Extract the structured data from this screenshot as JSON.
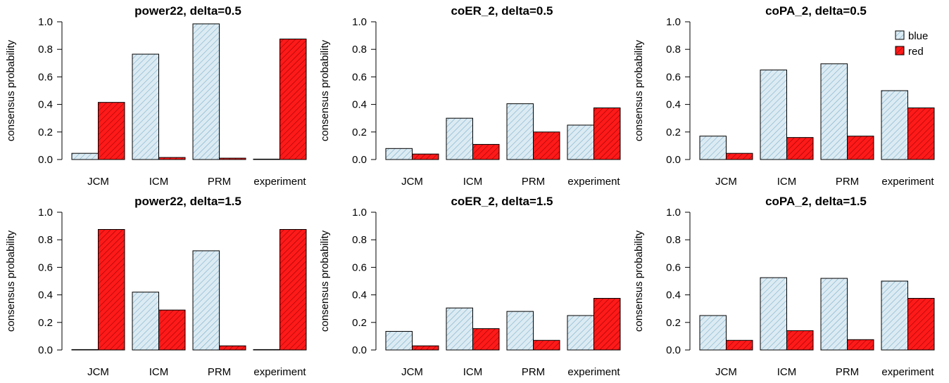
{
  "colors": {
    "blue_fill": "#dcebf3",
    "blue_hatch": "#7aaec9",
    "red_fill": "#ff1a1a",
    "red_hatch": "#9a0000",
    "axis": "#000000"
  },
  "legend": {
    "placement": "top-right of third panel",
    "entries": [
      "blue",
      "red"
    ]
  },
  "chart_data": [
    {
      "type": "bar",
      "title": "power22, delta=0.5",
      "ylabel": "consensus probability",
      "xlabel": "",
      "categories": [
        "JCM",
        "ICM",
        "PRM",
        "experiment"
      ],
      "ylim": [
        0,
        1
      ],
      "yticks": [
        "0.0",
        "0.2",
        "0.4",
        "0.6",
        "0.8",
        "1.0"
      ],
      "series": [
        {
          "name": "blue",
          "values": [
            0.045,
            0.765,
            0.985,
            0.0
          ]
        },
        {
          "name": "red",
          "values": [
            0.415,
            0.015,
            0.01,
            0.875
          ]
        }
      ]
    },
    {
      "type": "bar",
      "title": "coER_2, delta=0.5",
      "ylabel": "consensus probability",
      "xlabel": "",
      "categories": [
        "JCM",
        "ICM",
        "PRM",
        "experiment"
      ],
      "ylim": [
        0,
        1
      ],
      "yticks": [
        "0.0",
        "0.2",
        "0.4",
        "0.6",
        "0.8",
        "1.0"
      ],
      "series": [
        {
          "name": "blue",
          "values": [
            0.08,
            0.3,
            0.405,
            0.25
          ]
        },
        {
          "name": "red",
          "values": [
            0.04,
            0.11,
            0.2,
            0.375
          ]
        }
      ]
    },
    {
      "type": "bar",
      "title": "coPA_2, delta=0.5",
      "ylabel": "consensus probability",
      "xlabel": "",
      "categories": [
        "JCM",
        "ICM",
        "PRM",
        "experiment"
      ],
      "ylim": [
        0,
        1
      ],
      "yticks": [
        "0.0",
        "0.2",
        "0.4",
        "0.6",
        "0.8",
        "1.0"
      ],
      "series": [
        {
          "name": "blue",
          "values": [
            0.17,
            0.65,
            0.695,
            0.5
          ]
        },
        {
          "name": "red",
          "values": [
            0.045,
            0.16,
            0.17,
            0.375
          ]
        }
      ]
    },
    {
      "type": "bar",
      "title": "power22, delta=1.5",
      "ylabel": "consensus probability",
      "xlabel": "",
      "categories": [
        "JCM",
        "ICM",
        "PRM",
        "experiment"
      ],
      "ylim": [
        0,
        1
      ],
      "yticks": [
        "0.0",
        "0.2",
        "0.4",
        "0.6",
        "0.8",
        "1.0"
      ],
      "series": [
        {
          "name": "blue",
          "values": [
            0.002,
            0.42,
            0.72,
            0.002
          ]
        },
        {
          "name": "red",
          "values": [
            0.875,
            0.29,
            0.03,
            0.875
          ]
        }
      ]
    },
    {
      "type": "bar",
      "title": "coER_2, delta=1.5",
      "ylabel": "consensus probability",
      "xlabel": "",
      "categories": [
        "JCM",
        "ICM",
        "PRM",
        "experiment"
      ],
      "ylim": [
        0,
        1
      ],
      "yticks": [
        "0.0",
        "0.2",
        "0.4",
        "0.6",
        "0.8",
        "1.0"
      ],
      "series": [
        {
          "name": "blue",
          "values": [
            0.135,
            0.305,
            0.28,
            0.25
          ]
        },
        {
          "name": "red",
          "values": [
            0.03,
            0.155,
            0.07,
            0.375
          ]
        }
      ]
    },
    {
      "type": "bar",
      "title": "coPA_2, delta=1.5",
      "ylabel": "consensus probability",
      "xlabel": "",
      "categories": [
        "JCM",
        "ICM",
        "PRM",
        "experiment"
      ],
      "ylim": [
        0,
        1
      ],
      "yticks": [
        "0.0",
        "0.2",
        "0.4",
        "0.6",
        "0.8",
        "1.0"
      ],
      "series": [
        {
          "name": "blue",
          "values": [
            0.25,
            0.525,
            0.52,
            0.5
          ]
        },
        {
          "name": "red",
          "values": [
            0.07,
            0.14,
            0.075,
            0.375
          ]
        }
      ]
    }
  ]
}
